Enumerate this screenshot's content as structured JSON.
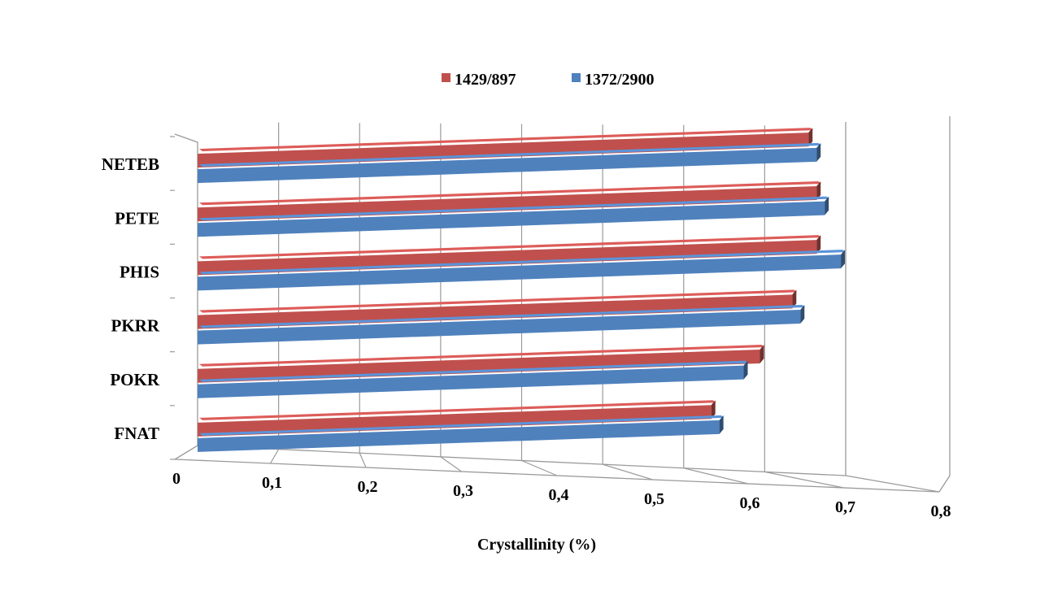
{
  "chart_data": {
    "type": "bar",
    "orientation": "horizontal",
    "style": "3d-perspective",
    "title": "",
    "xlabel": "Crystallinity  (%)",
    "ylabel": "",
    "categories": [
      "NETEB",
      "PETE",
      "PHIS",
      "PKRR",
      "POKR",
      "FNAT"
    ],
    "series": [
      {
        "name": "1429/897",
        "color": "#c0504d",
        "values": [
          0.74,
          0.75,
          0.75,
          0.72,
          0.68,
          0.62
        ]
      },
      {
        "name": "1372/2900",
        "color": "#4f81bd",
        "values": [
          0.75,
          0.76,
          0.78,
          0.73,
          0.66,
          0.63
        ]
      }
    ],
    "xlim": [
      0,
      0.8
    ],
    "xticks": [
      "0",
      "0,1",
      "0,2",
      "0,3",
      "0,4",
      "0,5",
      "0,6",
      "0,7",
      "0,8"
    ],
    "grid": true,
    "legend_position": "top-center"
  }
}
